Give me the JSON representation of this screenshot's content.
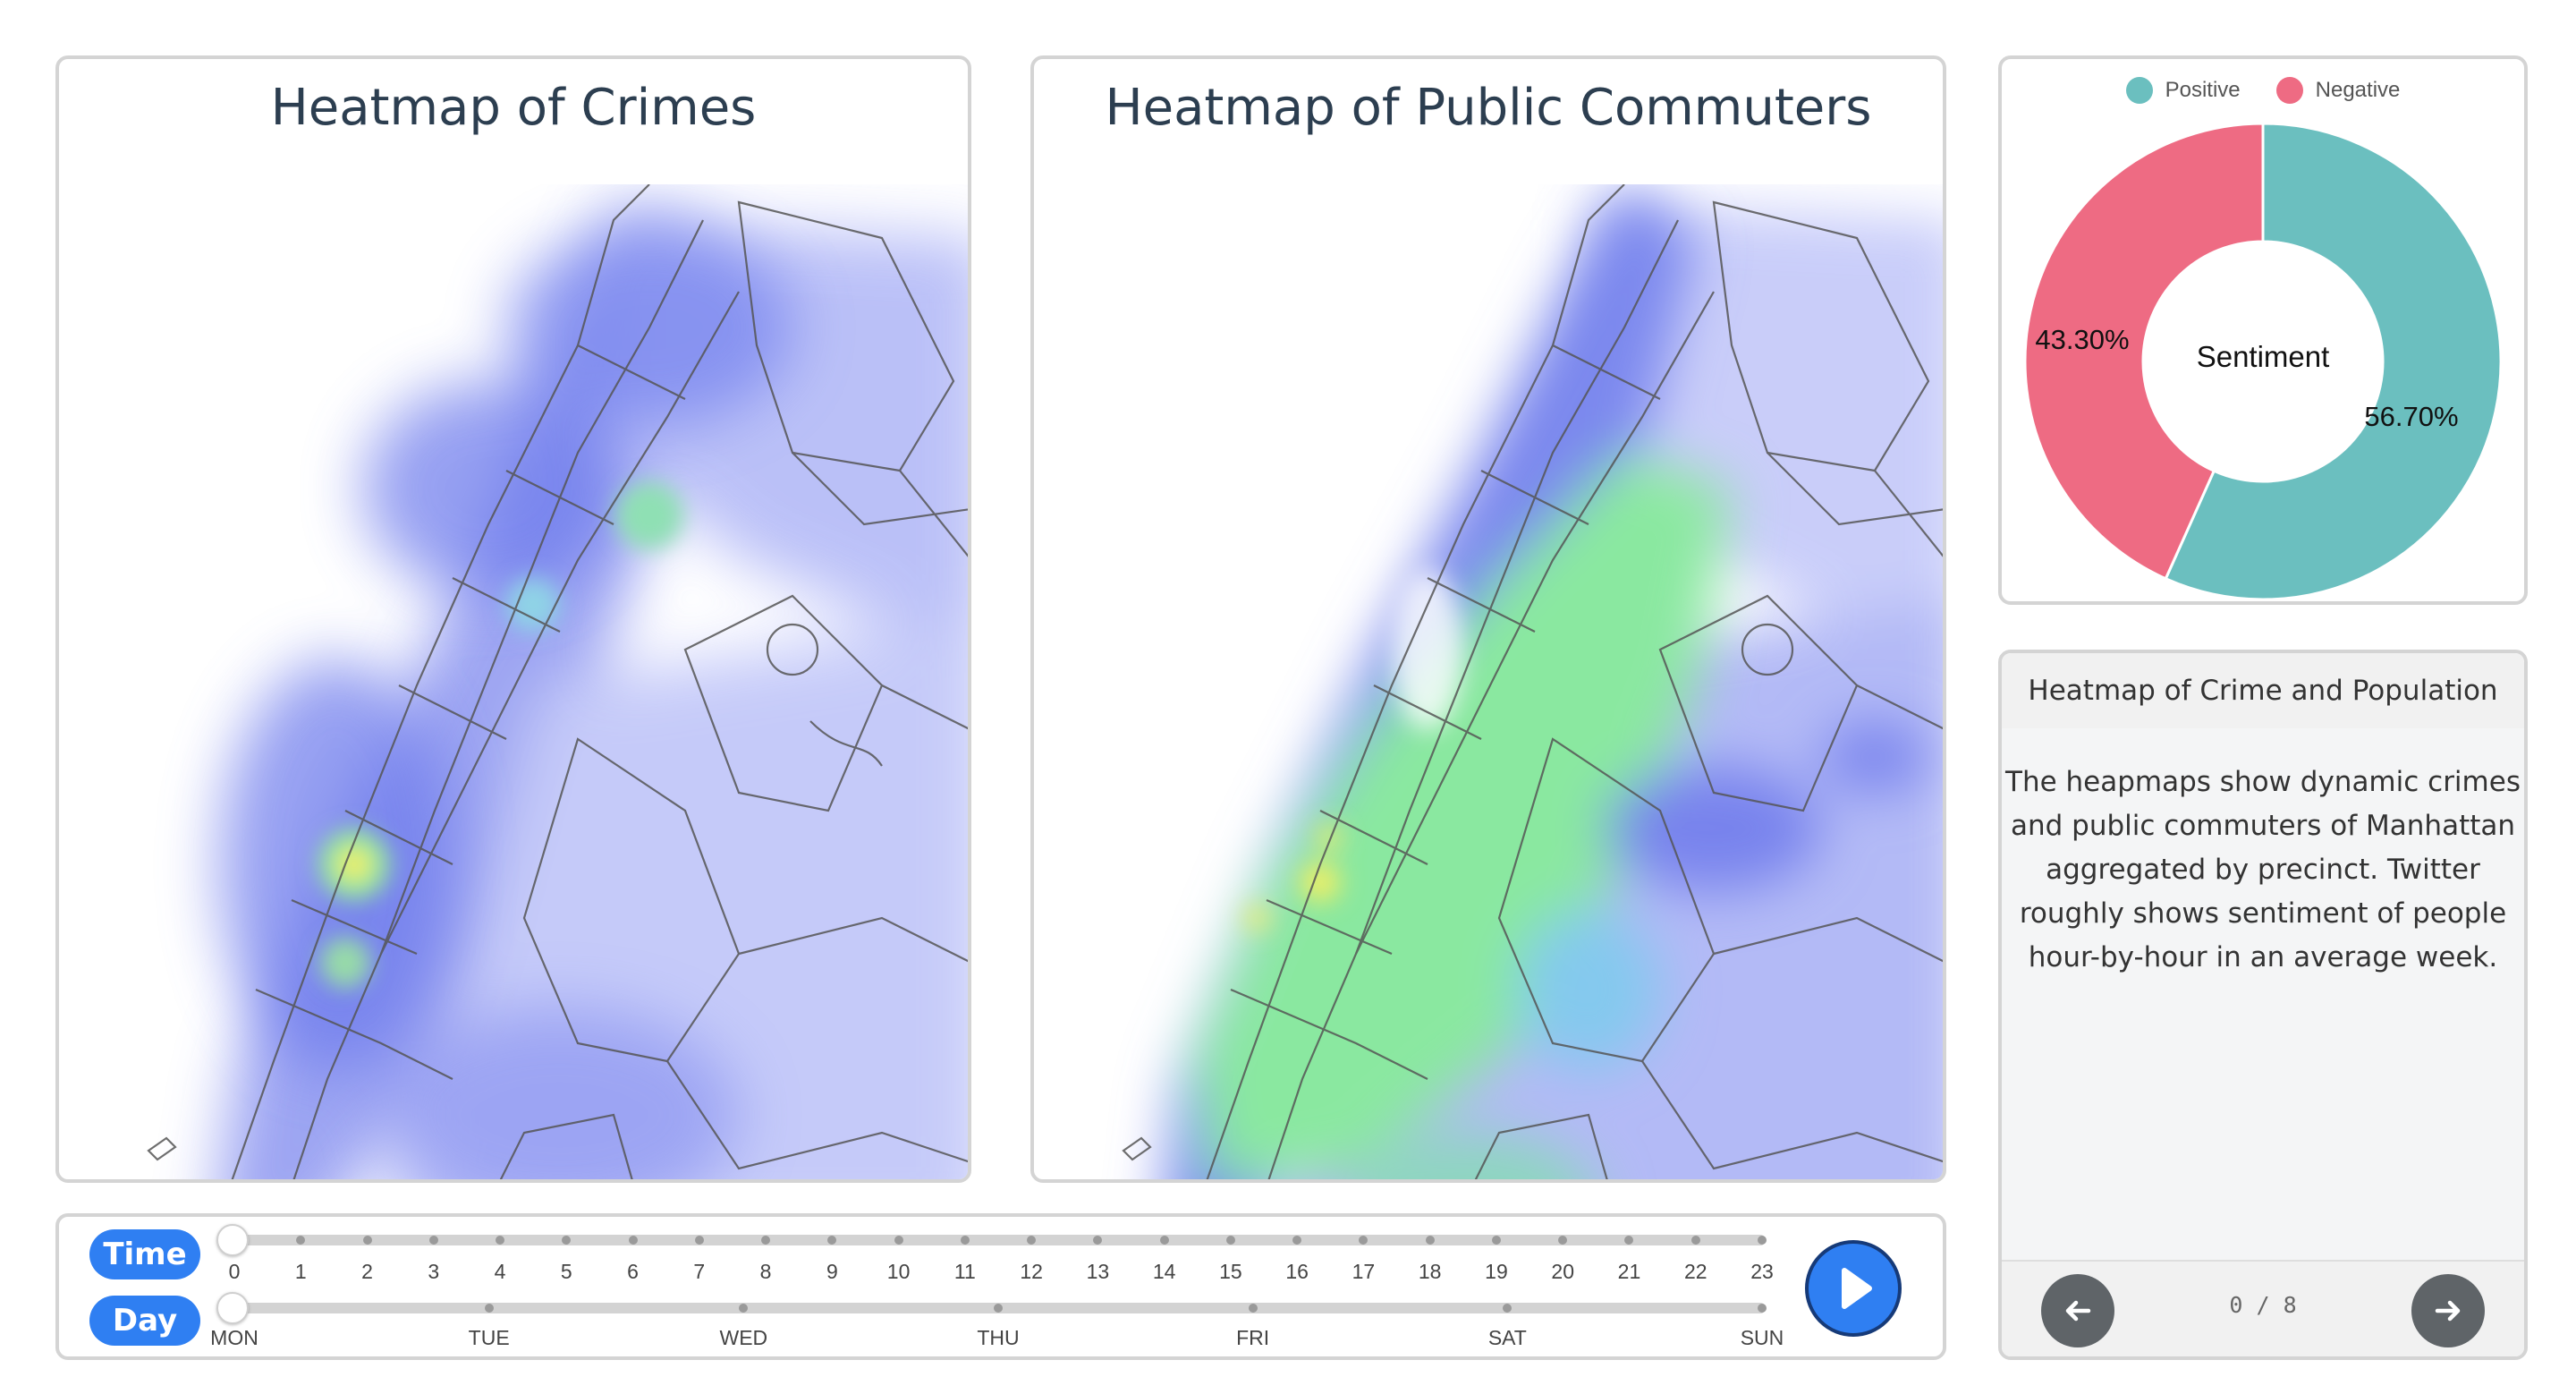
{
  "crime_map": {
    "title": "Heatmap of Crimes"
  },
  "commuter_map": {
    "title": "Heatmap of Public Commuters"
  },
  "sentiment_chart": {
    "legend": [
      {
        "label": "Positive",
        "color": "#6bbfbf"
      },
      {
        "label": "Negative",
        "color": "#ee6b83"
      }
    ],
    "center_label": "Sentiment",
    "positive_label": "56.70%",
    "negative_label": "43.30%"
  },
  "chart_data": {
    "type": "pie",
    "title": "",
    "center_label": "Sentiment",
    "categories": [
      "Positive",
      "Negative"
    ],
    "values": [
      56.7,
      43.3
    ],
    "colors": [
      "#6bbfbf",
      "#ee6b83"
    ],
    "legend": "top"
  },
  "info_panel": {
    "title": "Heatmap of Crime and Population",
    "body": "The heapmaps show dynamic crimes and public commuters of Manhattan aggregated by precinct. Twitter roughly shows sentiment of people hour-by-hour in an average week.",
    "pager": "0 / 8",
    "prev_icon": "arrow-left-icon",
    "next_icon": "arrow-right-icon"
  },
  "controls": {
    "time_label": "Time",
    "day_label": "Day",
    "hours": [
      "0",
      "1",
      "2",
      "3",
      "4",
      "5",
      "6",
      "7",
      "8",
      "9",
      "10",
      "11",
      "12",
      "13",
      "14",
      "15",
      "16",
      "17",
      "18",
      "19",
      "20",
      "21",
      "22",
      "23"
    ],
    "days": [
      "MON",
      "TUE",
      "WED",
      "THU",
      "FRI",
      "SAT",
      "SUN"
    ],
    "time_value": 0,
    "day_value": 0,
    "play_icon": "play-icon",
    "accent": "#2f7ff2"
  }
}
